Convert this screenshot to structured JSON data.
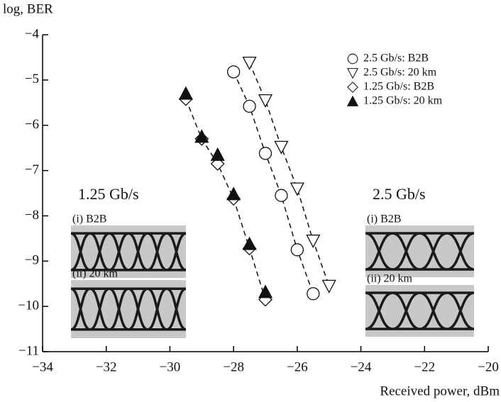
{
  "chart_data": {
    "type": "scatter",
    "ylabel": "log, BER",
    "xlabel": "Received power, dBm",
    "xlim": [
      -34,
      -20
    ],
    "ylim": [
      -11,
      -4
    ],
    "xticks": [
      {
        "value": -34,
        "label": "−34"
      },
      {
        "value": -32,
        "label": "−32"
      },
      {
        "value": -30,
        "label": "−30"
      },
      {
        "value": -28,
        "label": "−28"
      },
      {
        "value": -26,
        "label": "−26"
      },
      {
        "value": -24,
        "label": "−24"
      },
      {
        "value": -22,
        "label": "−22"
      },
      {
        "value": -20,
        "label": "−20"
      }
    ],
    "yticks": [
      {
        "value": -11,
        "label": "−11"
      },
      {
        "value": -10,
        "label": "−10"
      },
      {
        "value": -9,
        "label": "−9"
      },
      {
        "value": -8,
        "label": "−8"
      },
      {
        "value": -7,
        "label": "−7"
      },
      {
        "value": -6,
        "label": "−6"
      },
      {
        "value": -5,
        "label": "−5"
      },
      {
        "value": -4,
        "label": "−4"
      }
    ],
    "legend": "upper right",
    "series": [
      {
        "name": "2.5 Gb/s: B2B",
        "color": "#111111",
        "marker": "circle",
        "filled": false,
        "dashed_line": true,
        "x": [
          -28,
          -27.5,
          -27,
          -26.5,
          -26,
          -25.5
        ],
        "values": [
          -4.82,
          -5.58,
          -6.62,
          -7.55,
          -8.75,
          -9.72
        ]
      },
      {
        "name": "2.5 Gb/s: 20 km",
        "color": "#111111",
        "marker": "triangle-down",
        "filled": false,
        "dashed_line": true,
        "x": [
          -27.5,
          -27,
          -26.5,
          -26,
          -25.5,
          -25
        ],
        "values": [
          -4.62,
          -5.45,
          -6.48,
          -7.4,
          -8.55,
          -9.55
        ]
      },
      {
        "name": "1.25 Gb/s: B2B",
        "color": "#111111",
        "marker": "diamond",
        "filled": false,
        "dashed_line": true,
        "x": [
          -29.5,
          -29,
          -28.5,
          -28,
          -27.5,
          -27
        ],
        "values": [
          -5.42,
          -6.3,
          -6.85,
          -7.62,
          -8.72,
          -9.85
        ]
      },
      {
        "name": "1.25 Gb/s: 20 km",
        "color": "#111111",
        "marker": "triangle-up",
        "filled": true,
        "dashed_line": false,
        "x": [
          -29.5,
          -29,
          -28.5,
          -28,
          -27.5,
          -27
        ],
        "values": [
          -5.3,
          -6.25,
          -6.65,
          -7.52,
          -8.62,
          -9.68
        ]
      }
    ],
    "insets": [
      {
        "title": "1.25 Gb/s",
        "panels": [
          "(i) B2B",
          "(ii) 20 km"
        ]
      },
      {
        "title": "2.5 Gb/s",
        "panels": [
          "(i) B2B",
          "(ii) 20 km"
        ]
      }
    ]
  }
}
